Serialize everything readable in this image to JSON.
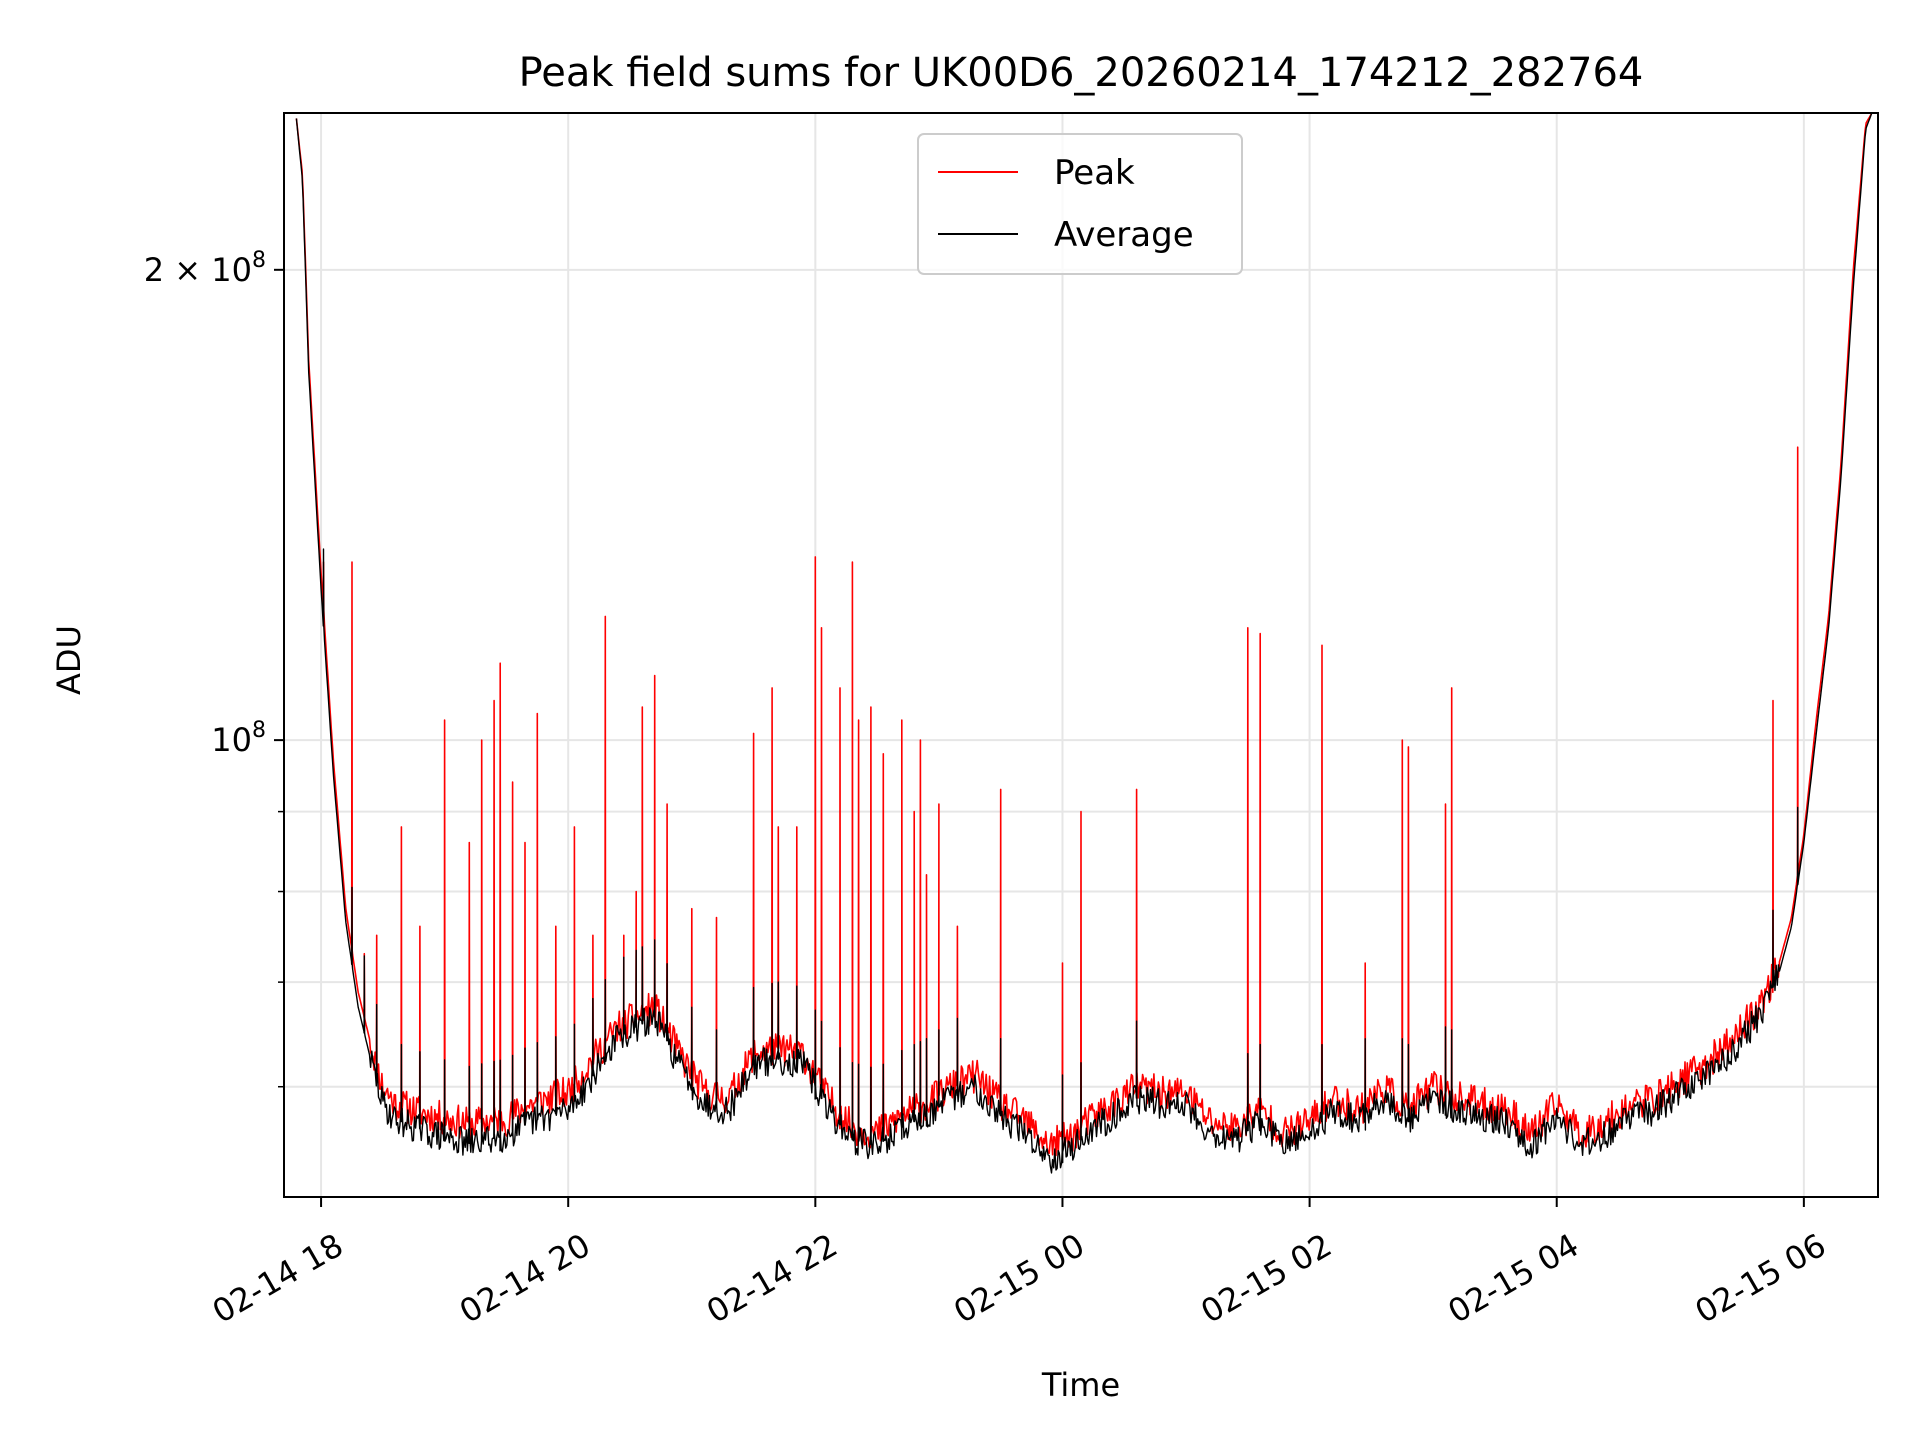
{
  "chart_data": {
    "type": "line",
    "title": "Peak field sums for UK00D6_20260214_174212_282764",
    "xlabel": "Time",
    "ylabel": "ADU",
    "yscale": "log",
    "grid": true,
    "legend_position": "top-center",
    "x_unit": "hours since 02-14 17:42",
    "xlim": [
      0,
      12.9
    ],
    "ylim": [
      51000000,
      252000000
    ],
    "x_ticks": [
      {
        "value": 0.3,
        "label": "02-14 18"
      },
      {
        "value": 2.3,
        "label": "02-14 20"
      },
      {
        "value": 4.3,
        "label": "02-14 22"
      },
      {
        "value": 6.3,
        "label": "02-15 00"
      },
      {
        "value": 8.3,
        "label": "02-15 02"
      },
      {
        "value": 10.3,
        "label": "02-15 04"
      },
      {
        "value": 12.3,
        "label": "02-15 06"
      }
    ],
    "y_ticks": [
      {
        "value": 100000000,
        "base": "10",
        "exp": "8",
        "coef": ""
      },
      {
        "value": 200000000,
        "base": "10",
        "exp": "8",
        "coef": "2 × "
      }
    ],
    "y_minor_ticks": [
      60000000,
      70000000,
      80000000,
      90000000
    ],
    "series": [
      {
        "name": "Peak",
        "color": "#ff0000",
        "x": [
          0.1,
          0.15,
          0.2,
          0.3,
          0.4,
          0.5,
          0.6,
          0.7,
          0.8,
          0.9,
          1.0,
          1.2,
          1.5,
          1.8,
          2.0,
          2.3,
          2.5,
          2.7,
          3.0,
          3.2,
          3.4,
          3.6,
          3.8,
          4.0,
          4.2,
          4.4,
          4.6,
          4.8,
          5.0,
          5.2,
          5.4,
          5.6,
          5.8,
          6.0,
          6.2,
          6.4,
          6.5,
          6.7,
          6.9,
          7.1,
          7.3,
          7.5,
          7.7,
          7.9,
          8.1,
          8.3,
          8.5,
          8.7,
          8.9,
          9.1,
          9.3,
          9.5,
          9.7,
          9.9,
          10.1,
          10.3,
          10.5,
          10.7,
          10.9,
          11.1,
          11.3,
          11.5,
          11.7,
          11.9,
          12.0,
          12.1,
          12.2,
          12.3,
          12.4,
          12.5,
          12.6,
          12.7,
          12.8,
          12.85
        ],
        "y": [
          250000000,
          230000000,
          175000000,
          128000000,
          97000000,
          78000000,
          69000000,
          64000000,
          60000000,
          58500000,
          58200000,
          57500000,
          56800000,
          57200000,
          58500000,
          59500000,
          62500000,
          65500000,
          67500000,
          63000000,
          59500000,
          59000000,
          63000000,
          63500000,
          63000000,
          59000000,
          56500000,
          56000000,
          57500000,
          58500000,
          60000000,
          61000000,
          58500000,
          57000000,
          55000000,
          56000000,
          57000000,
          58500000,
          60000000,
          59500000,
          59500000,
          57000000,
          56500000,
          58000000,
          56000000,
          57000000,
          59000000,
          58000000,
          60000000,
          58000000,
          60000000,
          59000000,
          58500000,
          58000000,
          56000000,
          58500000,
          56000000,
          57000000,
          58500000,
          59000000,
          60500000,
          62000000,
          64000000,
          67000000,
          69000000,
          72000000,
          77000000,
          87000000,
          103000000,
          120000000,
          150000000,
          200000000,
          248000000,
          252000000
        ],
        "spikes": [
          {
            "x": 0.32,
            "y": 130000000
          },
          {
            "x": 0.55,
            "y": 130000000
          },
          {
            "x": 0.65,
            "y": 73000000
          },
          {
            "x": 0.75,
            "y": 75000000
          },
          {
            "x": 0.95,
            "y": 88000000
          },
          {
            "x": 1.1,
            "y": 76000000
          },
          {
            "x": 1.3,
            "y": 103000000
          },
          {
            "x": 1.5,
            "y": 86000000
          },
          {
            "x": 1.6,
            "y": 100000000
          },
          {
            "x": 1.7,
            "y": 106000000
          },
          {
            "x": 1.75,
            "y": 112000000
          },
          {
            "x": 1.85,
            "y": 94000000
          },
          {
            "x": 1.95,
            "y": 86000000
          },
          {
            "x": 2.05,
            "y": 104000000
          },
          {
            "x": 2.2,
            "y": 76000000
          },
          {
            "x": 2.35,
            "y": 88000000
          },
          {
            "x": 2.5,
            "y": 75000000
          },
          {
            "x": 2.6,
            "y": 120000000
          },
          {
            "x": 2.75,
            "y": 75000000
          },
          {
            "x": 2.85,
            "y": 80000000
          },
          {
            "x": 2.9,
            "y": 105000000
          },
          {
            "x": 3.0,
            "y": 110000000
          },
          {
            "x": 3.1,
            "y": 91000000
          },
          {
            "x": 3.3,
            "y": 78000000
          },
          {
            "x": 3.5,
            "y": 77000000
          },
          {
            "x": 3.8,
            "y": 101000000
          },
          {
            "x": 3.95,
            "y": 108000000
          },
          {
            "x": 4.0,
            "y": 88000000
          },
          {
            "x": 4.15,
            "y": 88000000
          },
          {
            "x": 4.3,
            "y": 131000000
          },
          {
            "x": 4.35,
            "y": 118000000
          },
          {
            "x": 4.5,
            "y": 108000000
          },
          {
            "x": 4.6,
            "y": 130000000
          },
          {
            "x": 4.65,
            "y": 103000000
          },
          {
            "x": 4.75,
            "y": 105000000
          },
          {
            "x": 4.85,
            "y": 98000000
          },
          {
            "x": 5.0,
            "y": 103000000
          },
          {
            "x": 5.1,
            "y": 90000000
          },
          {
            "x": 5.15,
            "y": 100000000
          },
          {
            "x": 5.2,
            "y": 82000000
          },
          {
            "x": 5.3,
            "y": 91000000
          },
          {
            "x": 5.45,
            "y": 76000000
          },
          {
            "x": 5.8,
            "y": 93000000
          },
          {
            "x": 6.3,
            "y": 72000000
          },
          {
            "x": 6.45,
            "y": 90000000
          },
          {
            "x": 6.9,
            "y": 93000000
          },
          {
            "x": 7.8,
            "y": 118000000
          },
          {
            "x": 7.9,
            "y": 117000000
          },
          {
            "x": 8.4,
            "y": 115000000
          },
          {
            "x": 8.75,
            "y": 72000000
          },
          {
            "x": 9.05,
            "y": 100000000
          },
          {
            "x": 9.1,
            "y": 99000000
          },
          {
            "x": 9.4,
            "y": 91000000
          },
          {
            "x": 9.45,
            "y": 108000000
          },
          {
            "x": 12.05,
            "y": 106000000
          },
          {
            "x": 12.25,
            "y": 154000000
          }
        ]
      },
      {
        "name": "Average",
        "color": "#000000",
        "x": [
          0.1,
          0.15,
          0.2,
          0.3,
          0.4,
          0.5,
          0.6,
          0.7,
          0.8,
          0.9,
          1.0,
          1.2,
          1.5,
          1.8,
          2.0,
          2.3,
          2.5,
          2.7,
          3.0,
          3.2,
          3.4,
          3.6,
          3.8,
          4.0,
          4.2,
          4.4,
          4.6,
          4.8,
          5.0,
          5.2,
          5.4,
          5.6,
          5.8,
          6.0,
          6.2,
          6.4,
          6.5,
          6.7,
          6.9,
          7.1,
          7.3,
          7.5,
          7.7,
          7.9,
          8.1,
          8.3,
          8.5,
          8.7,
          8.9,
          9.1,
          9.3,
          9.5,
          9.7,
          9.9,
          10.1,
          10.3,
          10.5,
          10.7,
          10.9,
          11.1,
          11.3,
          11.5,
          11.7,
          11.9,
          12.0,
          12.1,
          12.2,
          12.3,
          12.4,
          12.5,
          12.6,
          12.7,
          12.8,
          12.85
        ],
        "y": [
          250000000,
          228000000,
          172000000,
          125000000,
          95000000,
          76500000,
          67500000,
          62500000,
          58500000,
          57200000,
          56800000,
          56000000,
          55200000,
          55800000,
          57000000,
          58000000,
          61000000,
          64500000,
          66500000,
          62000000,
          58500000,
          58000000,
          62000000,
          62500000,
          62000000,
          58000000,
          55500000,
          55000000,
          56500000,
          57500000,
          59000000,
          60000000,
          57500000,
          56000000,
          54000000,
          55000000,
          56000000,
          57500000,
          59000000,
          58500000,
          58500000,
          56000000,
          55500000,
          57000000,
          55000000,
          56000000,
          58000000,
          57000000,
          59000000,
          57000000,
          59000000,
          58000000,
          57500000,
          57000000,
          55000000,
          57500000,
          55000000,
          56000000,
          57500000,
          58000000,
          59500000,
          61000000,
          63000000,
          66000000,
          68000000,
          71000000,
          76000000,
          86000000,
          101000000,
          118000000,
          147000000,
          195000000,
          246000000,
          252000000
        ]
      }
    ]
  }
}
